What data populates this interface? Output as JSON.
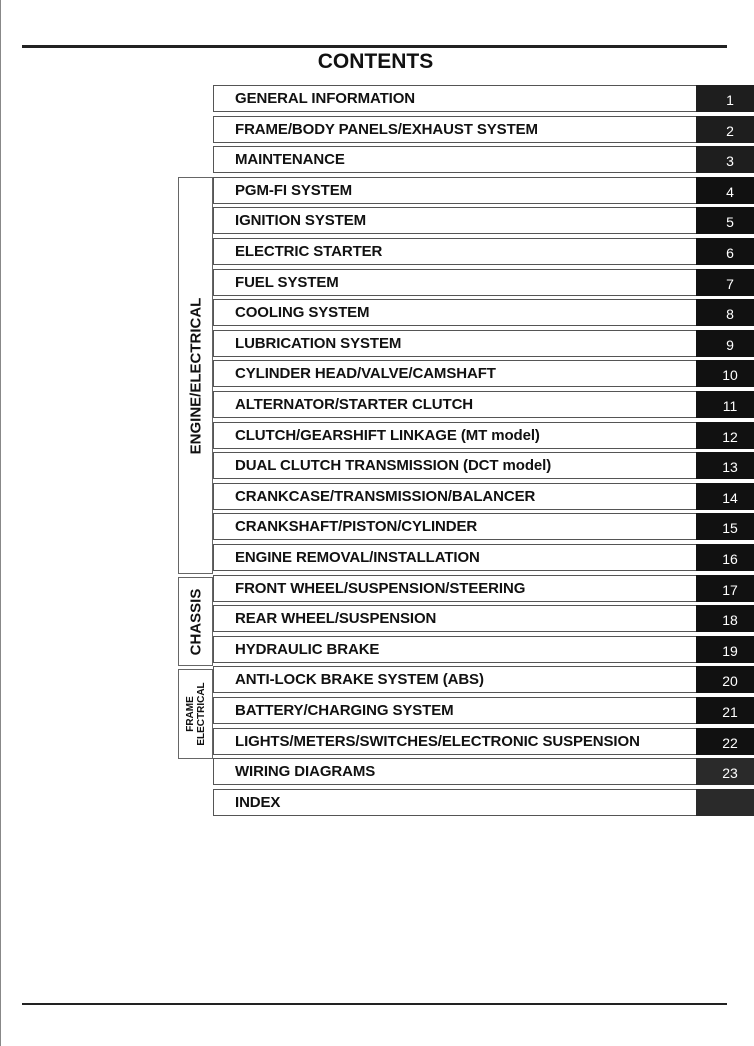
{
  "title": "CONTENTS",
  "groups": {
    "engine": "ENGINE/ELECTRICAL",
    "chassis": "CHASSIS",
    "frame_line1": "FRAME",
    "frame_line2": "ELECTRICAL"
  },
  "sections": [
    {
      "label": "GENERAL INFORMATION",
      "number": "1"
    },
    {
      "label": "FRAME/BODY PANELS/EXHAUST SYSTEM",
      "number": "2"
    },
    {
      "label": "MAINTENANCE",
      "number": "3"
    },
    {
      "label": "PGM-FI SYSTEM",
      "number": "4"
    },
    {
      "label": "IGNITION SYSTEM",
      "number": "5"
    },
    {
      "label": "ELECTRIC STARTER",
      "number": "6"
    },
    {
      "label": "FUEL SYSTEM",
      "number": "7"
    },
    {
      "label": "COOLING SYSTEM",
      "number": "8"
    },
    {
      "label": "LUBRICATION SYSTEM",
      "number": "9"
    },
    {
      "label": "CYLINDER HEAD/VALVE/CAMSHAFT",
      "number": "10"
    },
    {
      "label": "ALTERNATOR/STARTER CLUTCH",
      "number": "11"
    },
    {
      "label": "CLUTCH/GEARSHIFT LINKAGE (MT model)",
      "number": "12"
    },
    {
      "label": "DUAL CLUTCH TRANSMISSION (DCT model)",
      "number": "13"
    },
    {
      "label": "CRANKCASE/TRANSMISSION/BALANCER",
      "number": "14"
    },
    {
      "label": "CRANKSHAFT/PISTON/CYLINDER",
      "number": "15"
    },
    {
      "label": "ENGINE REMOVAL/INSTALLATION",
      "number": "16"
    },
    {
      "label": "FRONT WHEEL/SUSPENSION/STEERING",
      "number": "17"
    },
    {
      "label": "REAR WHEEL/SUSPENSION",
      "number": "18"
    },
    {
      "label": "HYDRAULIC BRAKE",
      "number": "19"
    },
    {
      "label": "ANTI-LOCK BRAKE SYSTEM (ABS)",
      "number": "20"
    },
    {
      "label": "BATTERY/CHARGING SYSTEM",
      "number": "21"
    },
    {
      "label": "LIGHTS/METERS/SWITCHES/ELECTRONIC SUSPENSION",
      "number": "22"
    },
    {
      "label": "WIRING DIAGRAMS",
      "number": "23"
    },
    {
      "label": "INDEX",
      "number": ""
    }
  ]
}
